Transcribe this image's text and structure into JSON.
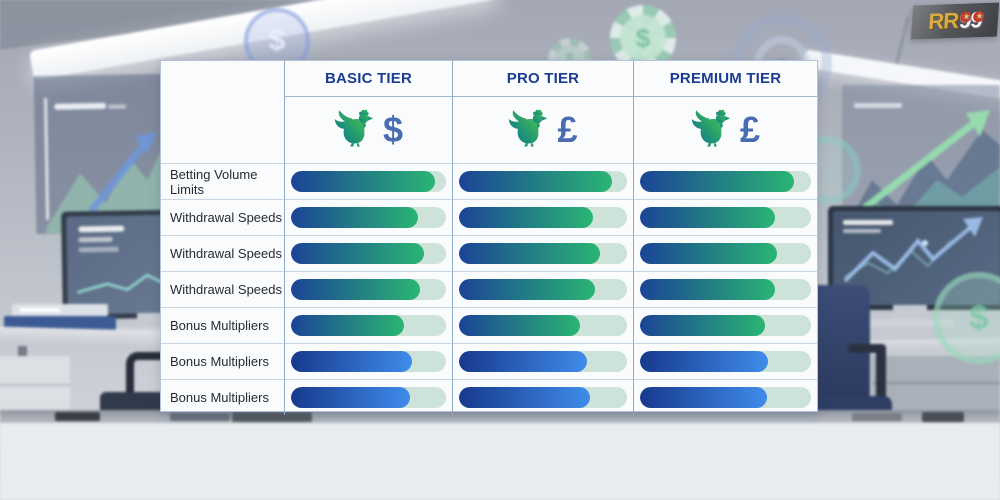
{
  "brand": {
    "logo_gold_text": "RR",
    "logo_white_text": "99",
    "logo_star": "★"
  },
  "table": {
    "tiers": [
      {
        "name": "BASIC TIER",
        "currency": "$",
        "mascot": "rooster-icon"
      },
      {
        "name": "PRO TIER",
        "currency": "£",
        "mascot": "rooster-icon"
      },
      {
        "name": "PREMIUM TIER",
        "currency": "£",
        "mascot": "rooster-icon"
      }
    ],
    "rows": [
      {
        "label": "Betting Volume Limits",
        "palette": "green",
        "values": [
          93,
          91,
          90
        ]
      },
      {
        "label": "Withdrawal Speeds",
        "palette": "green",
        "values": [
          82,
          80,
          79
        ]
      },
      {
        "label": "Withdrawal Speeds",
        "palette": "green",
        "values": [
          86,
          84,
          80
        ]
      },
      {
        "label": "Withdrawal Speeds",
        "palette": "green",
        "values": [
          83,
          81,
          79
        ]
      },
      {
        "label": "Bonus Multipliers",
        "palette": "green",
        "values": [
          73,
          72,
          73
        ]
      },
      {
        "label": "Bonus Multipliers",
        "palette": "blue",
        "values": [
          78,
          76,
          75
        ]
      },
      {
        "label": "Bonus Multipliers",
        "palette": "blue",
        "values": [
          77,
          78,
          74
        ]
      }
    ]
  },
  "chart_data": {
    "type": "table",
    "columns": [
      "",
      "BASIC TIER",
      "PRO TIER",
      "PREMIUM TIER"
    ],
    "rows": [
      {
        "label": "Betting Volume Limits",
        "bar_fill_pct": [
          93,
          91,
          90
        ]
      },
      {
        "label": "Withdrawal Speeds",
        "bar_fill_pct": [
          82,
          80,
          79
        ]
      },
      {
        "label": "Withdrawal Speeds",
        "bar_fill_pct": [
          86,
          84,
          80
        ]
      },
      {
        "label": "Withdrawal Speeds",
        "bar_fill_pct": [
          83,
          81,
          79
        ]
      },
      {
        "label": "Bonus Multipliers",
        "bar_fill_pct": [
          73,
          72,
          73
        ]
      },
      {
        "label": "Bonus Multipliers",
        "bar_fill_pct": [
          78,
          76,
          75
        ]
      },
      {
        "label": "Bonus Multipliers",
        "bar_fill_pct": [
          77,
          78,
          74
        ]
      }
    ],
    "note": "cell values are horizontal gradient progress bars, read as % of track length"
  },
  "background_icons": {
    "coin_blue_symbol": "$",
    "chip_top_symbol": "$",
    "coin_green_symbol": "$",
    "names": [
      "dollar-coin-icon",
      "casino-chip-icon",
      "target-rings-icon",
      "growth-arrow-icon"
    ]
  },
  "colors": {
    "header_text": "#1c3d8f",
    "currency_symbol": "#4a6cb0",
    "bar_track": "#cde2d9",
    "bar_green_start": "#1b4496",
    "bar_green_end": "#2ab573",
    "bar_blue_start": "#17398d",
    "bar_blue_end": "#3f8ceb",
    "logo_gold": "#d9ab45",
    "logo_red": "#c23b2e"
  }
}
